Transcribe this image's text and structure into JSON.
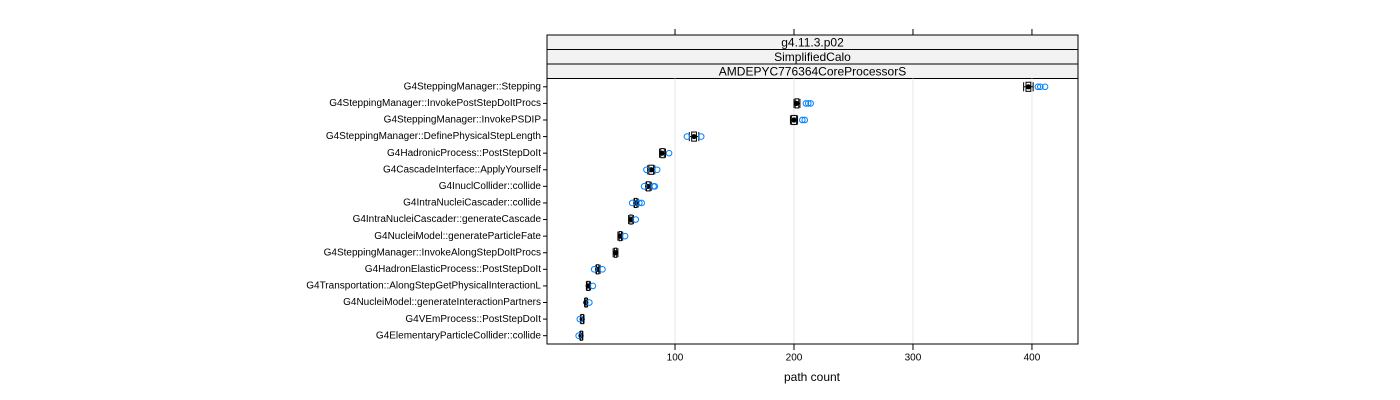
{
  "chart_data": {
    "type": "box",
    "strips": [
      "g4.11.3.p02",
      "SimplifiedCalo",
      "AMDEPYC776364CoreProcessorS"
    ],
    "xlabel": "path count",
    "xlim": [
      -7.6,
      438.7
    ],
    "xticks": [
      100,
      200,
      300,
      400
    ],
    "grid": true,
    "box_color": "#000000",
    "outlier_color": "#0080ff",
    "categories": [
      "G4SteppingManager::Stepping",
      "G4SteppingManager::InvokePostStepDoItProcs",
      "G4SteppingManager::InvokePSDIP",
      "G4SteppingManager::DefinePhysicalStepLength",
      "G4HadronicProcess::PostStepDoIt",
      "G4CascadeInterface::ApplyYourself",
      "G4InuclCollider::collide",
      "G4IntraNucleiCascader::collide",
      "G4IntraNucleiCascader::generateCascade",
      "G4NucleiModel::generateParticleFate",
      "G4SteppingManager::InvokeAlongStepDoItProcs",
      "G4HadronElasticProcess::PostStepDoIt",
      "G4Transportation::AlongStepGetPhysicalInteractionL",
      "G4NucleiModel::generateInteractionPartners",
      "G4VEmProcess::PostStepDoIt",
      "G4ElementaryParticleCollider::collide"
    ],
    "boxes": [
      {
        "median": 397,
        "q1": 395,
        "q3": 399,
        "whisker_low": 393,
        "whisker_high": 401,
        "outliers": [
          405,
          407,
          411
        ]
      },
      {
        "median": 202,
        "q1": 201,
        "q3": 204,
        "whisker_low": 200,
        "whisker_high": 205,
        "outliers": [
          210,
          212,
          214
        ]
      },
      {
        "median": 200,
        "q1": 198,
        "q3": 202,
        "whisker_low": 197,
        "whisker_high": 203,
        "outliers": [
          207,
          209
        ]
      },
      {
        "median": 116,
        "q1": 114,
        "q3": 118,
        "whisker_low": 112,
        "whisker_high": 120,
        "outliers": [
          110,
          122
        ]
      },
      {
        "median": 89,
        "q1": 88,
        "q3": 91,
        "whisker_low": 87,
        "whisker_high": 92,
        "outliers": [
          95
        ]
      },
      {
        "median": 80,
        "q1": 78,
        "q3": 82,
        "whisker_low": 77,
        "whisker_high": 83,
        "outliers": [
          76,
          85
        ]
      },
      {
        "median": 77,
        "q1": 76,
        "q3": 79,
        "whisker_low": 75.5,
        "whisker_high": 80,
        "outliers": [
          74,
          82,
          83
        ]
      },
      {
        "median": 67,
        "q1": 66,
        "q3": 68,
        "whisker_low": 65.5,
        "whisker_high": 69,
        "outliers": [
          64,
          70,
          72
        ]
      },
      {
        "median": 63,
        "q1": 62,
        "q3": 64,
        "whisker_low": 61,
        "whisker_high": 65,
        "outliers": [
          67
        ]
      },
      {
        "median": 54,
        "q1": 53,
        "q3": 55,
        "whisker_low": 52,
        "whisker_high": 56,
        "outliers": [
          58
        ]
      },
      {
        "median": 50,
        "q1": 49,
        "q3": 51,
        "whisker_low": 48,
        "whisker_high": 52,
        "outliers": []
      },
      {
        "median": 35,
        "q1": 34,
        "q3": 36,
        "whisker_low": 33.5,
        "whisker_high": 37,
        "outliers": [
          32,
          39
        ]
      },
      {
        "median": 27,
        "q1": 26,
        "q3": 28,
        "whisker_low": 25.5,
        "whisker_high": 29,
        "outliers": [
          31
        ]
      },
      {
        "median": 25,
        "q1": 24.5,
        "q3": 26,
        "whisker_low": 24,
        "whisker_high": 26.5,
        "outliers": [
          28
        ]
      },
      {
        "median": 22,
        "q1": 21,
        "q3": 23,
        "whisker_low": 20.5,
        "whisker_high": 23.5,
        "outliers": [
          20
        ]
      },
      {
        "median": 21,
        "q1": 20.5,
        "q3": 22,
        "whisker_low": 20,
        "whisker_high": 22.5,
        "outliers": [
          19
        ]
      }
    ]
  }
}
